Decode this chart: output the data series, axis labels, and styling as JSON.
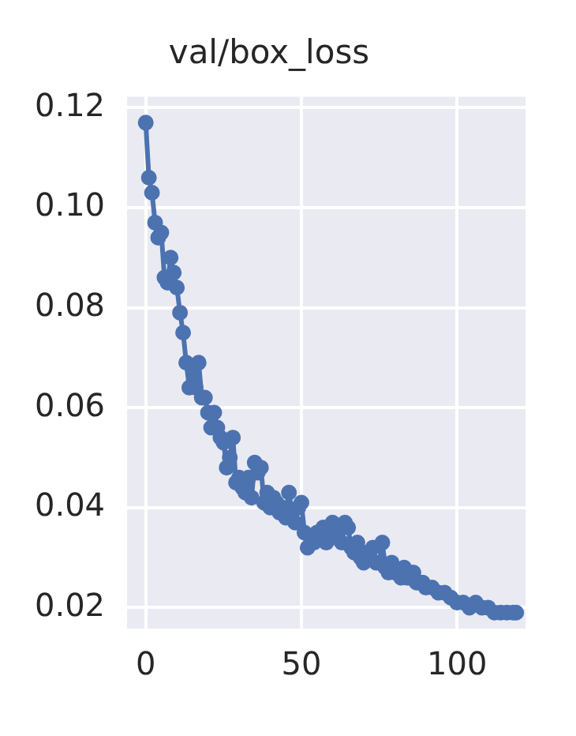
{
  "chart_data": {
    "type": "line",
    "title": "val/box_loss",
    "marker": "circle",
    "grid": true,
    "legend": false,
    "xlim": [
      -6,
      122
    ],
    "xticks": [
      0,
      50,
      100
    ],
    "ylim": [
      0.0158,
      0.1222
    ],
    "yticks": [
      0.02,
      0.04,
      0.06,
      0.08,
      {
        "value": 0.1,
        "label": "0.10"
      },
      0.12
    ],
    "series": [
      {
        "color": "#4c72b0",
        "x": [
          0,
          1,
          2,
          3,
          4,
          5,
          6,
          7,
          8,
          9,
          10,
          11,
          12,
          13,
          14,
          15,
          16,
          17,
          18,
          19,
          20,
          21,
          22,
          23,
          24,
          25,
          26,
          27,
          28,
          29,
          30,
          31,
          32,
          33,
          34,
          35,
          36,
          37,
          38,
          39,
          40,
          41,
          42,
          43,
          44,
          45,
          46,
          47,
          48,
          49,
          50,
          51,
          52,
          53,
          54,
          55,
          56,
          57,
          58,
          59,
          60,
          61,
          62,
          63,
          64,
          65,
          66,
          67,
          68,
          69,
          70,
          71,
          72,
          73,
          74,
          75,
          76,
          77,
          78,
          79,
          80,
          81,
          82,
          83,
          84,
          85,
          86,
          87,
          88,
          89,
          90,
          92,
          94,
          96,
          98,
          100,
          102,
          104,
          106,
          108,
          110,
          112,
          114,
          116,
          118,
          119
        ],
        "values": [
          0.117,
          0.106,
          0.103,
          0.097,
          0.094,
          0.095,
          0.086,
          0.085,
          0.09,
          0.087,
          0.084,
          0.079,
          0.075,
          0.069,
          0.064,
          0.068,
          0.064,
          0.069,
          0.062,
          0.062,
          0.059,
          0.056,
          0.059,
          0.056,
          0.054,
          0.053,
          0.048,
          0.05,
          0.054,
          0.045,
          0.046,
          0.044,
          0.043,
          0.046,
          0.042,
          0.049,
          0.047,
          0.048,
          0.041,
          0.043,
          0.04,
          0.042,
          0.041,
          0.039,
          0.04,
          0.038,
          0.043,
          0.039,
          0.037,
          0.04,
          0.041,
          0.035,
          0.032,
          0.034,
          0.033,
          0.035,
          0.034,
          0.036,
          0.033,
          0.035,
          0.037,
          0.034,
          0.036,
          0.033,
          0.037,
          0.036,
          0.032,
          0.031,
          0.033,
          0.03,
          0.029,
          0.031,
          0.03,
          0.032,
          0.029,
          0.029,
          0.033,
          0.028,
          0.027,
          0.029,
          0.027,
          0.027,
          0.026,
          0.028,
          0.026,
          0.026,
          0.027,
          0.025,
          0.025,
          0.025,
          0.024,
          0.024,
          0.023,
          0.023,
          0.022,
          0.021,
          0.021,
          0.02,
          0.021,
          0.02,
          0.02,
          0.019,
          0.019,
          0.019,
          0.019,
          0.019
        ]
      }
    ]
  }
}
